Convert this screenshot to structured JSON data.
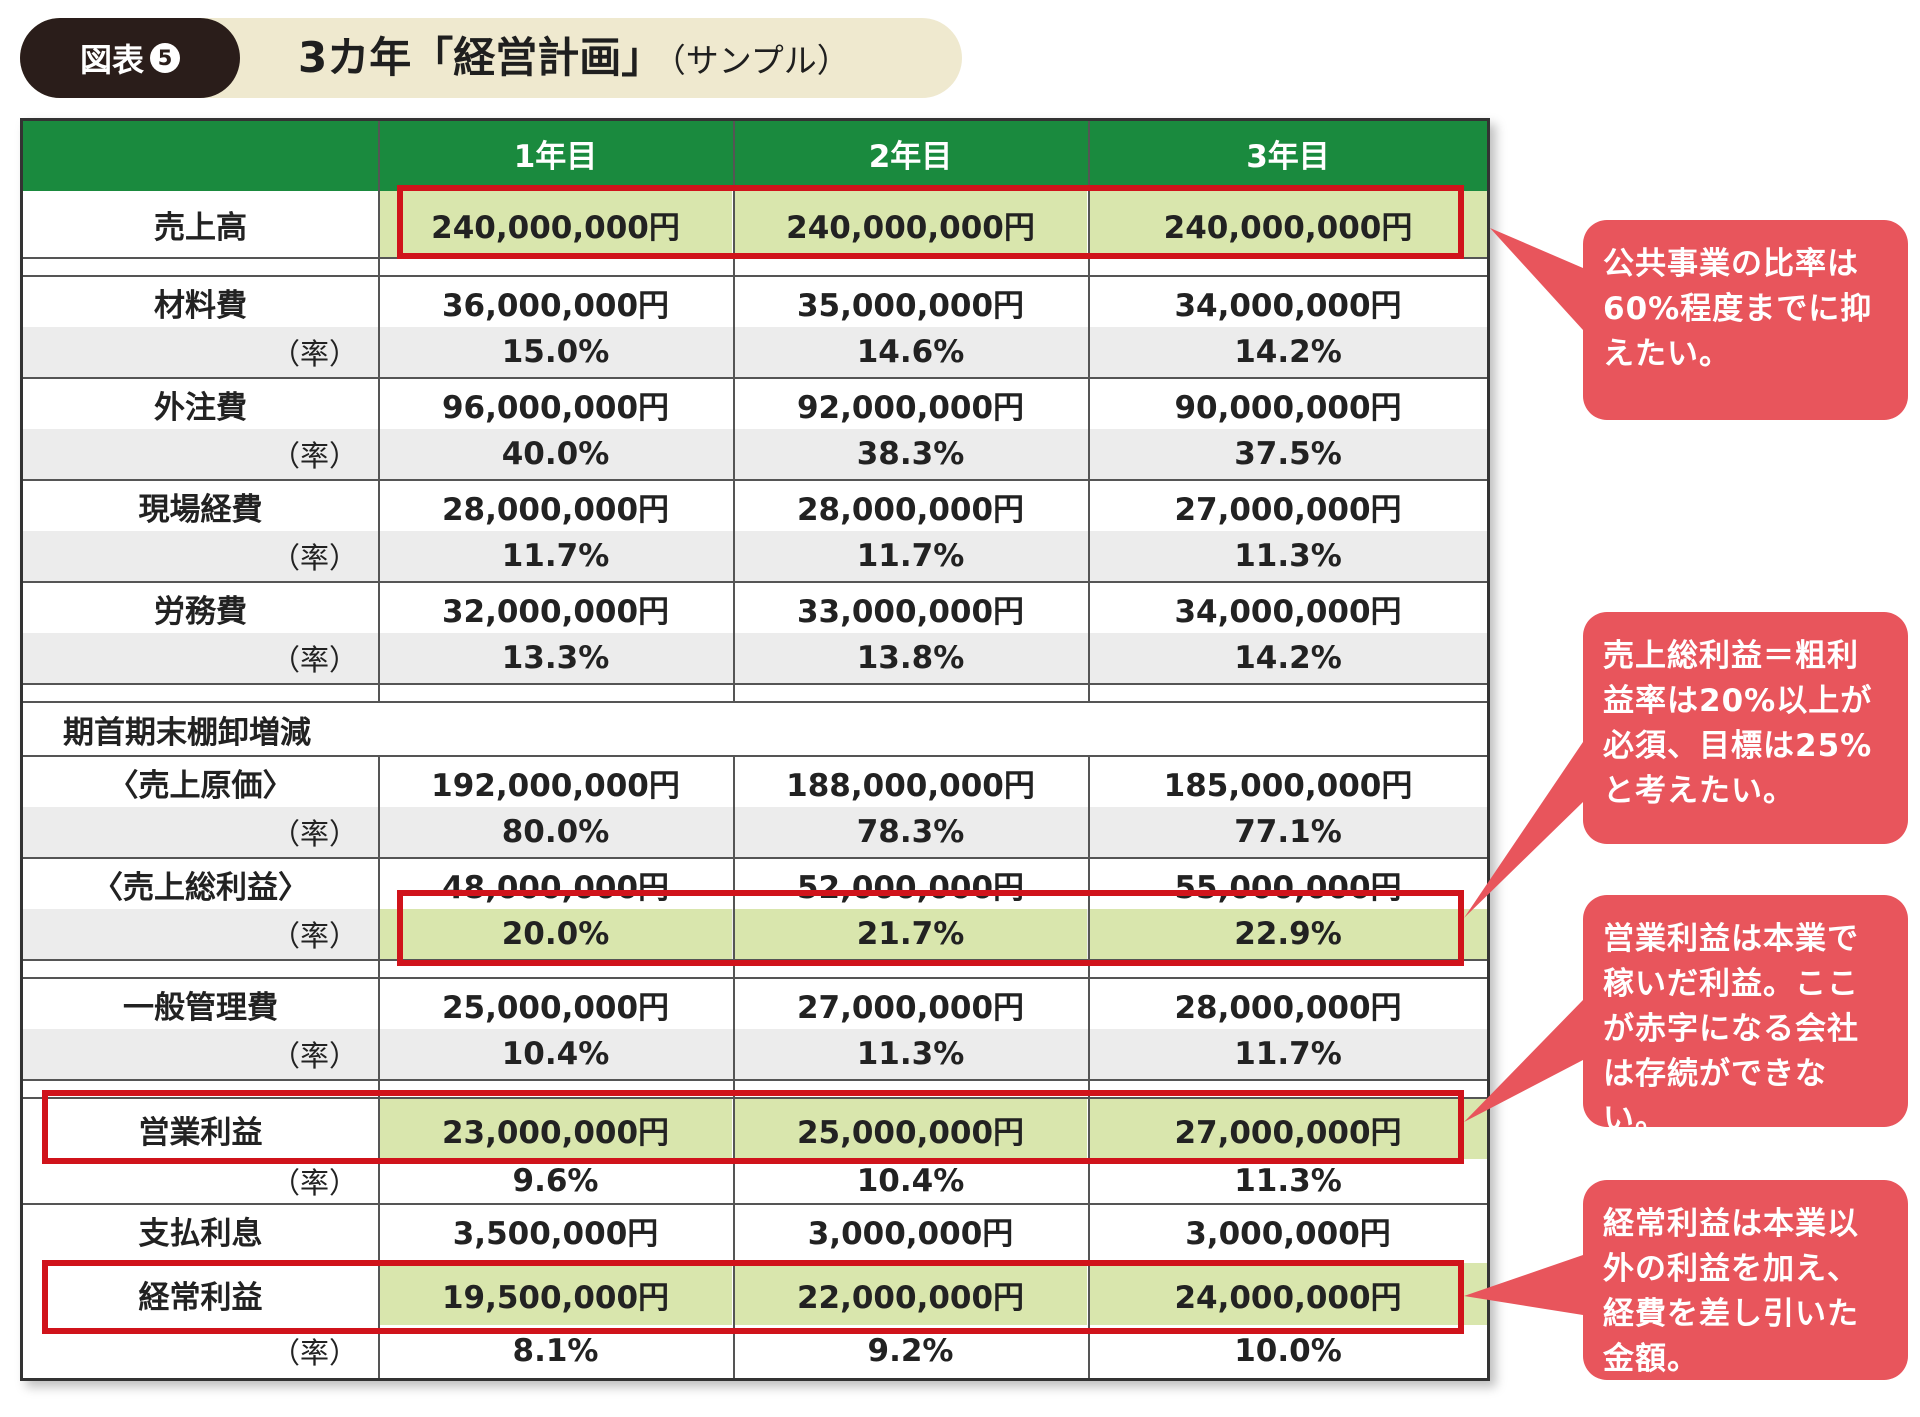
{
  "header": {
    "label": "図表",
    "label_number": "5",
    "title": "3カ年「経営計画」",
    "subtitle": "（サンプル）"
  },
  "table": {
    "columns": [
      "1年目",
      "2年目",
      "3年目"
    ],
    "sales": {
      "label": "売上高",
      "values": [
        "240,000,000円",
        "240,000,000円",
        "240,000,000円"
      ]
    },
    "rate_label": "（率）",
    "costs": [
      {
        "label": "材料費",
        "values": [
          "36,000,000円",
          "35,000,000円",
          "34,000,000円"
        ],
        "rates": [
          "15.0%",
          "14.6%",
          "14.2%"
        ]
      },
      {
        "label": "外注費",
        "values": [
          "96,000,000円",
          "92,000,000円",
          "90,000,000円"
        ],
        "rates": [
          "40.0%",
          "38.3%",
          "37.5%"
        ]
      },
      {
        "label": "現場経費",
        "values": [
          "28,000,000円",
          "28,000,000円",
          "27,000,000円"
        ],
        "rates": [
          "11.7%",
          "11.7%",
          "11.3%"
        ]
      },
      {
        "label": "労務費",
        "values": [
          "32,000,000円",
          "33,000,000円",
          "34,000,000円"
        ],
        "rates": [
          "13.3%",
          "13.8%",
          "14.2%"
        ]
      }
    ],
    "inventory_label": "期首期末棚卸増減",
    "cost_of_sales": {
      "label": "〈売上原価〉",
      "values": [
        "192,000,000円",
        "188,000,000円",
        "185,000,000円"
      ],
      "rates": [
        "80.0%",
        "78.3%",
        "77.1%"
      ]
    },
    "gross_profit": {
      "label": "〈売上総利益〉",
      "values": [
        "48,000,000円",
        "52,000,000円",
        "55,000,000円"
      ],
      "rates": [
        "20.0%",
        "21.7%",
        "22.9%"
      ]
    },
    "admin": {
      "label": "一般管理費",
      "values": [
        "25,000,000円",
        "27,000,000円",
        "28,000,000円"
      ],
      "rates": [
        "10.4%",
        "11.3%",
        "11.7%"
      ]
    },
    "operating_profit": {
      "label": "営業利益",
      "values": [
        "23,000,000円",
        "25,000,000円",
        "27,000,000円"
      ],
      "rates": [
        "9.6%",
        "10.4%",
        "11.3%"
      ]
    },
    "interest": {
      "label": "支払利息",
      "values": [
        "3,500,000円",
        "3,000,000円",
        "3,000,000円"
      ]
    },
    "ordinary_profit": {
      "label": "経常利益",
      "values": [
        "19,500,000円",
        "22,000,000円",
        "24,000,000円"
      ],
      "rates": [
        "8.1%",
        "9.2%",
        "10.0%"
      ]
    }
  },
  "callouts": [
    "公共事業の比率は60%程度までに抑えたい。",
    "売上総利益＝粗利益率は20%以上が必須、目標は25%と考えたい。",
    "営業利益は本業で稼いだ利益。ここが赤字になる会社は存続ができない。",
    "経常利益は本業以外の利益を加え、経費を差し引いた金額。"
  ],
  "colors": {
    "header_green": "#1a8a3e",
    "highlight_fill": "#d9e6ad",
    "highlight_border": "#d0131b",
    "callout": "#e8555c",
    "title_pill": "#efe9cf",
    "label_pill": "#2a1d1a"
  }
}
